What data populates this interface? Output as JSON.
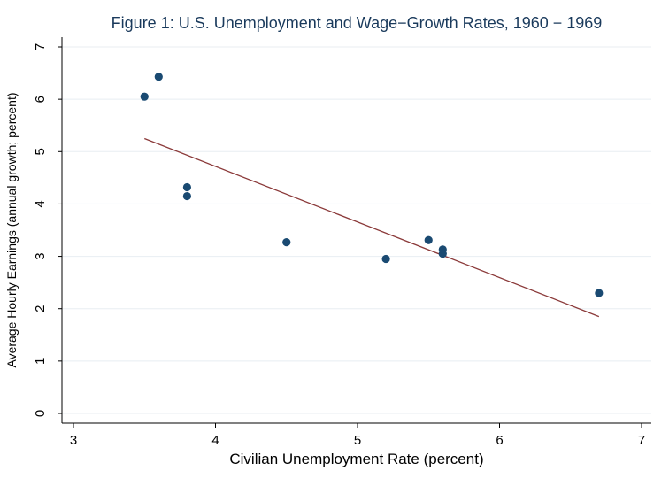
{
  "chart_data": {
    "type": "scatter",
    "title": "Figure 1: U.S. Unemployment and Wage−Growth Rates, 1960 − 1969",
    "xlabel": "Civilian Unemployment Rate (percent)",
    "ylabel": "Average Hourly Earnings (annual growth; percent)",
    "xlim": [
      3,
      7
    ],
    "ylim": [
      0,
      7
    ],
    "xticks": [
      3,
      4,
      5,
      6,
      7
    ],
    "yticks": [
      0,
      1,
      2,
      3,
      4,
      5,
      6,
      7
    ],
    "grid": true,
    "points": [
      {
        "x": 3.5,
        "y": 6.05
      },
      {
        "x": 3.6,
        "y": 6.43
      },
      {
        "x": 3.8,
        "y": 4.32
      },
      {
        "x": 3.8,
        "y": 4.15
      },
      {
        "x": 4.5,
        "y": 3.27
      },
      {
        "x": 5.2,
        "y": 2.95
      },
      {
        "x": 5.5,
        "y": 3.31
      },
      {
        "x": 5.6,
        "y": 3.13
      },
      {
        "x": 5.6,
        "y": 3.05
      },
      {
        "x": 6.7,
        "y": 2.3
      }
    ],
    "fit_line": {
      "x": [
        3.5,
        6.7
      ],
      "y": [
        5.25,
        1.85
      ]
    },
    "colors": {
      "points": "#1a4a72",
      "fit_line": "#8b3a3a",
      "title": "#1a3a5c"
    }
  }
}
